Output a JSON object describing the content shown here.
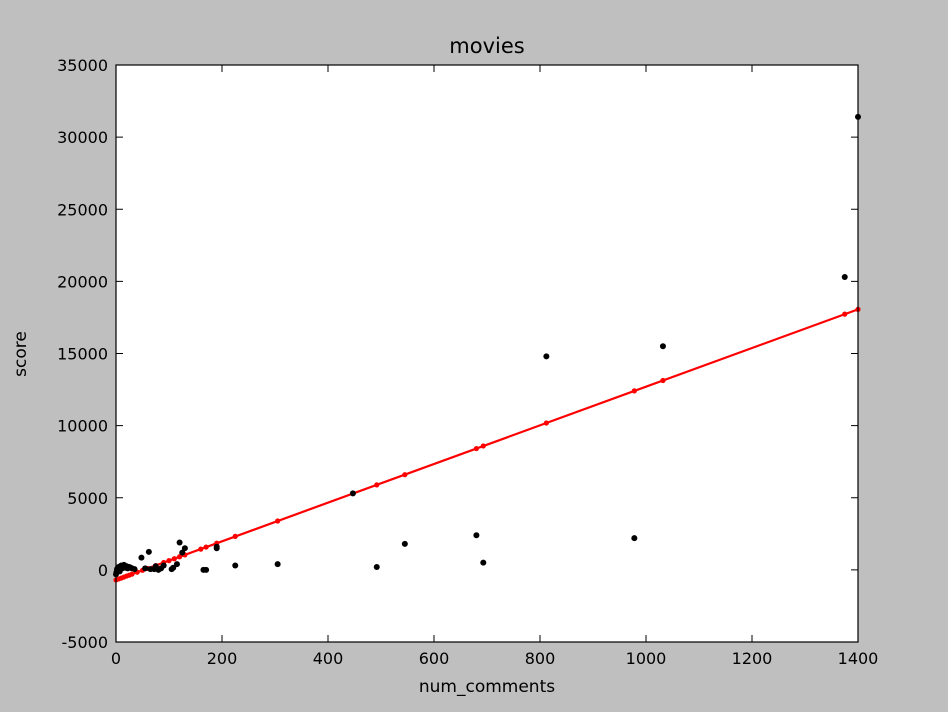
{
  "chart_data": {
    "type": "scatter",
    "title": "movies",
    "xlabel": "num_comments",
    "ylabel": "score",
    "xlim": [
      0,
      1400
    ],
    "ylim": [
      -5000,
      35000
    ],
    "x_ticks": [
      0,
      200,
      400,
      600,
      800,
      1000,
      1200,
      1400
    ],
    "y_ticks": [
      -5000,
      0,
      5000,
      10000,
      15000,
      20000,
      25000,
      30000,
      35000
    ],
    "grid": false,
    "legend": false,
    "colors": {
      "figure_background": "#bfbfbf",
      "plot_background": "#ffffff",
      "points": "#000000",
      "fit": "#ff0000"
    },
    "series": [
      {
        "kind": "scatter",
        "color": "#000000",
        "points": [
          [
            0,
            -300
          ],
          [
            1,
            -150
          ],
          [
            2,
            50
          ],
          [
            3,
            100
          ],
          [
            4,
            -50
          ],
          [
            5,
            200
          ],
          [
            6,
            150
          ],
          [
            7,
            -100
          ],
          [
            8,
            250
          ],
          [
            10,
            300
          ],
          [
            12,
            100
          ],
          [
            14,
            200
          ],
          [
            15,
            350
          ],
          [
            18,
            150
          ],
          [
            20,
            250
          ],
          [
            22,
            100
          ],
          [
            25,
            200
          ],
          [
            28,
            150
          ],
          [
            30,
            100
          ],
          [
            35,
            50
          ],
          [
            48,
            850
          ],
          [
            55,
            100
          ],
          [
            62,
            1250
          ],
          [
            65,
            50
          ],
          [
            72,
            50
          ],
          [
            75,
            250
          ],
          [
            80,
            0
          ],
          [
            85,
            100
          ],
          [
            90,
            300
          ],
          [
            105,
            50
          ],
          [
            108,
            150
          ],
          [
            115,
            400
          ],
          [
            120,
            1900
          ],
          [
            125,
            1200
          ],
          [
            130,
            1500
          ],
          [
            165,
            0
          ],
          [
            170,
            0
          ],
          [
            190,
            1600
          ],
          [
            190,
            1500
          ],
          [
            225,
            300
          ],
          [
            305,
            400
          ],
          [
            447,
            5300
          ],
          [
            492,
            200
          ],
          [
            545,
            1800
          ],
          [
            680,
            2400
          ],
          [
            693,
            500
          ],
          [
            812,
            14800
          ],
          [
            978,
            2200
          ],
          [
            1032,
            15500
          ],
          [
            1375,
            20300
          ],
          [
            1400,
            31400
          ]
        ]
      },
      {
        "kind": "fit",
        "color": "#ff0000",
        "slope": 13.4,
        "intercept": -700,
        "markers": [
          [
            0,
            -700
          ],
          [
            5,
            -630
          ],
          [
            10,
            -570
          ],
          [
            15,
            -500
          ],
          [
            20,
            -430
          ],
          [
            25,
            -370
          ],
          [
            30,
            -300
          ],
          [
            40,
            -160
          ],
          [
            50,
            -30
          ],
          [
            60,
            100
          ],
          [
            75,
            300
          ],
          [
            90,
            510
          ],
          [
            100,
            640
          ],
          [
            110,
            770
          ],
          [
            120,
            910
          ],
          [
            130,
            1040
          ],
          [
            160,
            1440
          ],
          [
            170,
            1580
          ],
          [
            190,
            1850
          ],
          [
            225,
            2320
          ],
          [
            305,
            3390
          ],
          [
            447,
            5290
          ],
          [
            492,
            5890
          ],
          [
            545,
            6600
          ],
          [
            680,
            8410
          ],
          [
            693,
            8590
          ],
          [
            812,
            10180
          ],
          [
            978,
            12410
          ],
          [
            1032,
            13130
          ],
          [
            1375,
            17730
          ],
          [
            1400,
            18060
          ]
        ]
      }
    ]
  }
}
